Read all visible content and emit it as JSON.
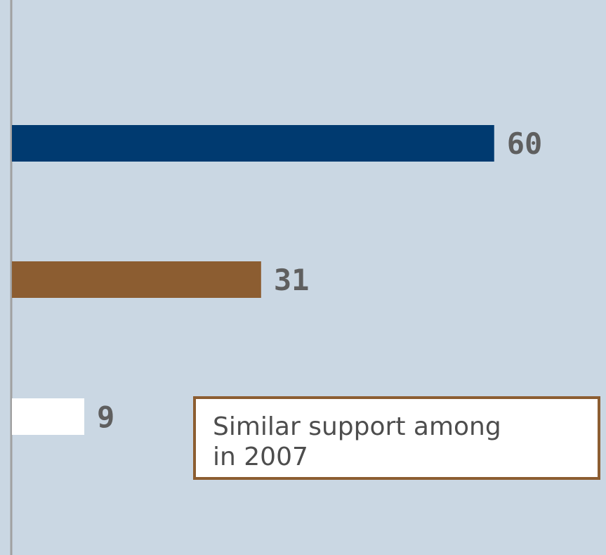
{
  "chart_data": {
    "type": "bar",
    "orientation": "horizontal",
    "series": [
      {
        "values": [
          60,
          31,
          9
        ],
        "colors": [
          "#003a70",
          "#8c5d31",
          "#ffffff"
        ]
      }
    ],
    "categories": [
      "",
      "",
      ""
    ],
    "values": [
      60,
      31,
      9
    ],
    "xlim": [
      0,
      74
    ],
    "grid": false,
    "legend": "none",
    "annotations": [
      {
        "text": "Similar support among\nin 2007"
      }
    ]
  },
  "colors": {
    "background": "#cad7e3",
    "axis": "#a0a0a0",
    "label": "#5f5f5f"
  }
}
